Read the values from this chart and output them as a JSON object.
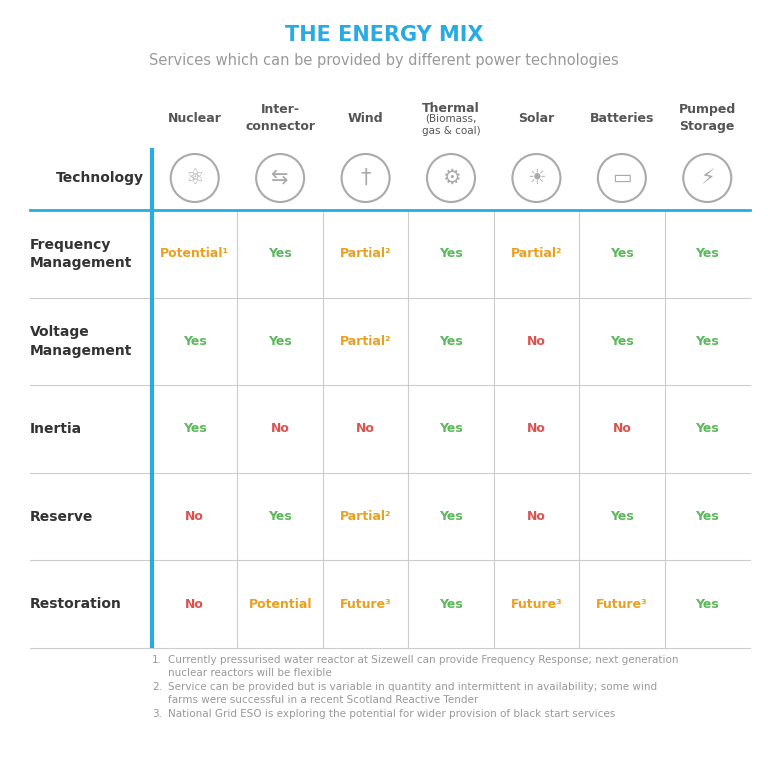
{
  "title": "THE ENERGY MIX",
  "subtitle": "Services which can be provided by different power technologies",
  "title_color": "#29ABE2",
  "subtitle_color": "#999999",
  "columns": [
    "Nuclear",
    "Inter-\nconnector",
    "Wind",
    "Thermal\n(Biomass,\ngas & coal)",
    "Solar",
    "Batteries",
    "Pumped\nStorage"
  ],
  "rows": [
    "Frequency\nManagement",
    "Voltage\nManagement",
    "Inertia",
    "Reserve",
    "Restoration"
  ],
  "cells": [
    [
      [
        "Potential¹",
        "orange"
      ],
      [
        "Yes",
        "green"
      ],
      [
        "Partial²",
        "orange"
      ],
      [
        "Yes",
        "green"
      ],
      [
        "Partial²",
        "orange"
      ],
      [
        "Yes",
        "green"
      ],
      [
        "Yes",
        "green"
      ]
    ],
    [
      [
        "Yes",
        "green"
      ],
      [
        "Yes",
        "green"
      ],
      [
        "Partial²",
        "orange"
      ],
      [
        "Yes",
        "green"
      ],
      [
        "No",
        "red"
      ],
      [
        "Yes",
        "green"
      ],
      [
        "Yes",
        "green"
      ]
    ],
    [
      [
        "Yes",
        "green"
      ],
      [
        "No",
        "red"
      ],
      [
        "No",
        "red"
      ],
      [
        "Yes",
        "green"
      ],
      [
        "No",
        "red"
      ],
      [
        "No",
        "red"
      ],
      [
        "Yes",
        "green"
      ]
    ],
    [
      [
        "No",
        "red"
      ],
      [
        "Yes",
        "green"
      ],
      [
        "Partial²",
        "orange"
      ],
      [
        "Yes",
        "green"
      ],
      [
        "No",
        "red"
      ],
      [
        "Yes",
        "green"
      ],
      [
        "Yes",
        "green"
      ]
    ],
    [
      [
        "No",
        "red"
      ],
      [
        "Potential",
        "orange"
      ],
      [
        "Future³",
        "orange"
      ],
      [
        "Yes",
        "green"
      ],
      [
        "Future³",
        "orange"
      ],
      [
        "Future³",
        "orange"
      ],
      [
        "Yes",
        "green"
      ]
    ]
  ],
  "color_map": {
    "green": "#5BB85B",
    "red": "#D9534F",
    "orange": "#E8A020"
  },
  "row_header_color": "#333333",
  "col_header_color": "#555555",
  "technology_label": "Technology",
  "cyan_line_color": "#29ABE2",
  "grid_color": "#CCCCCC",
  "footnotes": [
    "Currently pressurised water reactor at Sizewell can provide Frequency Response; next generation\nnuclear reactors will be flexible",
    "Service can be provided but is variable in quantity and intermittent in availability; some wind\nfarms were successful in a recent Scotland Reactive Tender",
    "National Grid ESO is exploring the potential for wider provision of black start services"
  ],
  "footnote_color": "#999999",
  "bg_color": "#FFFFFF",
  "fig_width": 7.68,
  "fig_height": 7.68,
  "dpi": 100
}
